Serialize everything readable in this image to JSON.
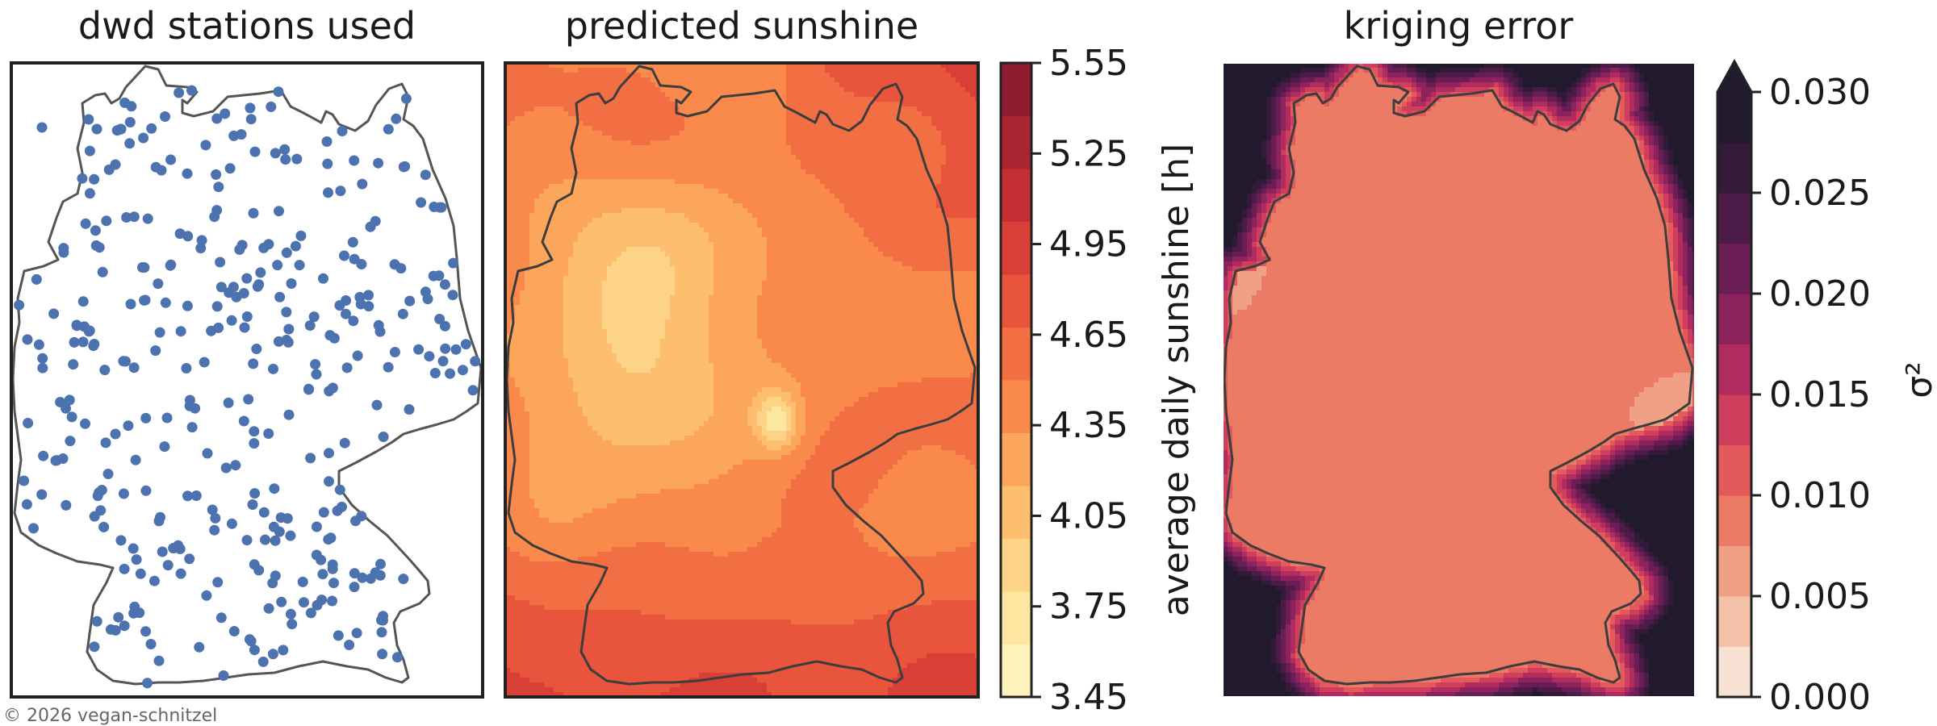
{
  "chart_data": [
    {
      "type": "scatter",
      "title": "dwd stations used",
      "marker_color": "#4c72b0",
      "border_color": "#555555"
    },
    {
      "type": "heatmap",
      "title": "predicted sunshine",
      "colorbar_label": "average daily sunshine [h]",
      "colorbar_ticks": [
        "3.45",
        "3.75",
        "4.05",
        "4.35",
        "4.65",
        "4.95",
        "5.25",
        "5.55"
      ],
      "value_range": [
        3.45,
        5.55
      ],
      "palette": [
        "#fdf1bc",
        "#fde6a0",
        "#fdd487",
        "#fdbf6f",
        "#fca65c",
        "#f98a4c",
        "#f26f43",
        "#e8553c",
        "#d83f36",
        "#c42f33",
        "#a92531",
        "#8f1c31"
      ]
    },
    {
      "type": "heatmap",
      "title": "kriging error",
      "colorbar_label": "σ²",
      "colorbar_ticks": [
        "0.000",
        "0.005",
        "0.010",
        "0.015",
        "0.020",
        "0.025",
        "0.030"
      ],
      "value_range": [
        0.0,
        0.03
      ],
      "colorbar_extend": "max",
      "palette": [
        "#f7e1d2",
        "#f4c2a8",
        "#f0a084",
        "#ec7b65",
        "#e35a5c",
        "#cf3e5d",
        "#b02c5e",
        "#8c235c",
        "#6b1e55",
        "#4c1b47",
        "#321a38",
        "#211a2c"
      ]
    }
  ],
  "credit": "© 2026 vegan-schnitzel"
}
